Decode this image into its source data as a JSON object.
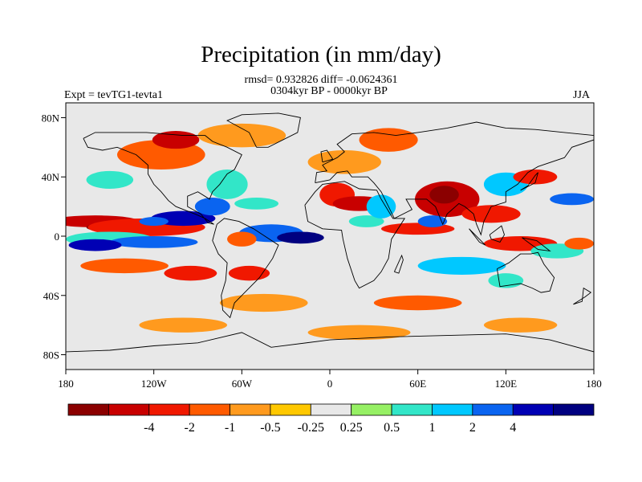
{
  "title": "Precipitation (in mm/day)",
  "stats": "rmsd= 0.932826 diff= -0.0624361",
  "period": "0304kyr BP - 0000kyr BP",
  "experiment": "Expt = tevTG1-tevta1",
  "season": "JJA",
  "axes": {
    "lat_labels": [
      "80N",
      "40N",
      "0",
      "40S",
      "80S"
    ],
    "lat_values": [
      80,
      40,
      0,
      -40,
      -80
    ],
    "lon_labels": [
      "180",
      "120W",
      "60W",
      "0",
      "60E",
      "120E",
      "180"
    ],
    "lon_values": [
      -180,
      -120,
      -60,
      0,
      60,
      120,
      180
    ],
    "lat_range": [
      -90,
      90
    ],
    "lon_range": [
      -180,
      180
    ]
  },
  "colorbar": {
    "colors": [
      "#8b0000",
      "#c80000",
      "#f01800",
      "#ff5a00",
      "#ff9a1e",
      "#ffc800",
      "#e8e8e8",
      "#96f064",
      "#32e6c8",
      "#00c8ff",
      "#0a64f0",
      "#0000b4",
      "#000080"
    ],
    "labels": [
      "-4",
      "-2",
      "-1",
      "-0.5",
      "-0.25",
      "0.25",
      "0.5",
      "1",
      "2",
      "4"
    ]
  },
  "field_blobs": [
    {
      "lon": -160,
      "lat": 10,
      "rx": 30,
      "ry": 4,
      "c": 1
    },
    {
      "lon": -150,
      "lat": 6,
      "rx": 16,
      "ry": 3,
      "c": 0
    },
    {
      "lon": -125,
      "lat": 6,
      "rx": 40,
      "ry": 6,
      "c": 2
    },
    {
      "lon": -100,
      "lat": 12,
      "rx": 22,
      "ry": 5,
      "c": 11
    },
    {
      "lon": -120,
      "lat": 10,
      "rx": 10,
      "ry": 3,
      "c": 10
    },
    {
      "lon": -150,
      "lat": -2,
      "rx": 30,
      "ry": 5,
      "c": 8
    },
    {
      "lon": -120,
      "lat": -4,
      "rx": 30,
      "ry": 4,
      "c": 10
    },
    {
      "lon": -160,
      "lat": -6,
      "rx": 18,
      "ry": 4,
      "c": 11
    },
    {
      "lon": -140,
      "lat": -20,
      "rx": 30,
      "ry": 5,
      "c": 3
    },
    {
      "lon": -95,
      "lat": -25,
      "rx": 18,
      "ry": 5,
      "c": 2
    },
    {
      "lon": -150,
      "lat": 38,
      "rx": 16,
      "ry": 6,
      "c": 8
    },
    {
      "lon": -115,
      "lat": 55,
      "rx": 30,
      "ry": 10,
      "c": 3
    },
    {
      "lon": -105,
      "lat": 65,
      "rx": 16,
      "ry": 6,
      "c": 1
    },
    {
      "lon": -60,
      "lat": 68,
      "rx": 30,
      "ry": 8,
      "c": 4
    },
    {
      "lon": -70,
      "lat": 35,
      "rx": 14,
      "ry": 10,
      "c": 8
    },
    {
      "lon": -80,
      "lat": 20,
      "rx": 12,
      "ry": 6,
      "c": 10
    },
    {
      "lon": -50,
      "lat": 22,
      "rx": 15,
      "ry": 4,
      "c": 8
    },
    {
      "lon": -40,
      "lat": 2,
      "rx": 22,
      "ry": 6,
      "c": 10
    },
    {
      "lon": -20,
      "lat": -1,
      "rx": 16,
      "ry": 4,
      "c": 12
    },
    {
      "lon": -60,
      "lat": -2,
      "rx": 10,
      "ry": 5,
      "c": 3
    },
    {
      "lon": -55,
      "lat": -25,
      "rx": 14,
      "ry": 5,
      "c": 2
    },
    {
      "lon": -45,
      "lat": -45,
      "rx": 30,
      "ry": 6,
      "c": 4
    },
    {
      "lon": 5,
      "lat": 28,
      "rx": 12,
      "ry": 8,
      "c": 2
    },
    {
      "lon": 20,
      "lat": 22,
      "rx": 18,
      "ry": 5,
      "c": 1
    },
    {
      "lon": 25,
      "lat": 10,
      "rx": 12,
      "ry": 4,
      "c": 8
    },
    {
      "lon": 35,
      "lat": 20,
      "rx": 10,
      "ry": 8,
      "c": 9
    },
    {
      "lon": 10,
      "lat": 50,
      "rx": 25,
      "ry": 8,
      "c": 4
    },
    {
      "lon": 40,
      "lat": 65,
      "rx": 20,
      "ry": 8,
      "c": 3
    },
    {
      "lon": 80,
      "lat": 25,
      "rx": 22,
      "ry": 12,
      "c": 1
    },
    {
      "lon": 78,
      "lat": 28,
      "rx": 10,
      "ry": 6,
      "c": 0
    },
    {
      "lon": 60,
      "lat": 5,
      "rx": 25,
      "ry": 4,
      "c": 2
    },
    {
      "lon": 70,
      "lat": 10,
      "rx": 10,
      "ry": 4,
      "c": 10
    },
    {
      "lon": 110,
      "lat": 15,
      "rx": 20,
      "ry": 6,
      "c": 2
    },
    {
      "lon": 120,
      "lat": 35,
      "rx": 15,
      "ry": 8,
      "c": 9
    },
    {
      "lon": 140,
      "lat": 40,
      "rx": 15,
      "ry": 5,
      "c": 2
    },
    {
      "lon": 165,
      "lat": 25,
      "rx": 15,
      "ry": 4,
      "c": 10
    },
    {
      "lon": 130,
      "lat": -5,
      "rx": 25,
      "ry": 5,
      "c": 2
    },
    {
      "lon": 155,
      "lat": -10,
      "rx": 18,
      "ry": 5,
      "c": 8
    },
    {
      "lon": 120,
      "lat": -30,
      "rx": 12,
      "ry": 5,
      "c": 8
    },
    {
      "lon": 90,
      "lat": -20,
      "rx": 30,
      "ry": 6,
      "c": 9
    },
    {
      "lon": 60,
      "lat": -45,
      "rx": 30,
      "ry": 5,
      "c": 3
    },
    {
      "lon": 20,
      "lat": -65,
      "rx": 35,
      "ry": 5,
      "c": 4
    },
    {
      "lon": -100,
      "lat": -60,
      "rx": 30,
      "ry": 5,
      "c": 4
    },
    {
      "lon": 130,
      "lat": -60,
      "rx": 25,
      "ry": 5,
      "c": 4
    },
    {
      "lon": 170,
      "lat": -5,
      "rx": 10,
      "ry": 4,
      "c": 3
    }
  ],
  "coastlines": [
    {
      "name": "north-america",
      "pts": [
        [
          -168,
          66
        ],
        [
          -160,
          70
        ],
        [
          -140,
          70
        ],
        [
          -125,
          70
        ],
        [
          -100,
          68
        ],
        [
          -85,
          68
        ],
        [
          -80,
          64
        ],
        [
          -70,
          60
        ],
        [
          -60,
          55
        ],
        [
          -65,
          45
        ],
        [
          -70,
          42
        ],
        [
          -75,
          35
        ],
        [
          -80,
          30
        ],
        [
          -82,
          25
        ],
        [
          -90,
          30
        ],
        [
          -97,
          27
        ],
        [
          -97,
          20
        ],
        [
          -88,
          15
        ],
        [
          -83,
          9
        ],
        [
          -79,
          8
        ],
        [
          -85,
          12
        ],
        [
          -92,
          15
        ],
        [
          -105,
          20
        ],
        [
          -110,
          24
        ],
        [
          -115,
          30
        ],
        [
          -120,
          35
        ],
        [
          -124,
          42
        ],
        [
          -124,
          48
        ],
        [
          -132,
          55
        ],
        [
          -145,
          60
        ],
        [
          -155,
          58
        ],
        [
          -165,
          60
        ],
        [
          -168,
          66
        ]
      ]
    },
    {
      "name": "south-america",
      "pts": [
        [
          -77,
          8
        ],
        [
          -72,
          12
        ],
        [
          -62,
          10
        ],
        [
          -52,
          5
        ],
        [
          -35,
          -6
        ],
        [
          -39,
          -15
        ],
        [
          -48,
          -28
        ],
        [
          -58,
          -38
        ],
        [
          -65,
          -45
        ],
        [
          -68,
          -55
        ],
        [
          -73,
          -50
        ],
        [
          -74,
          -40
        ],
        [
          -71,
          -30
        ],
        [
          -70,
          -18
        ],
        [
          -76,
          -12
        ],
        [
          -80,
          -3
        ],
        [
          -77,
          8
        ]
      ]
    },
    {
      "name": "africa",
      "pts": [
        [
          -17,
          21
        ],
        [
          -10,
          30
        ],
        [
          -5,
          35
        ],
        [
          10,
          37
        ],
        [
          20,
          32
        ],
        [
          32,
          31
        ],
        [
          35,
          25
        ],
        [
          43,
          12
        ],
        [
          51,
          12
        ],
        [
          42,
          -2
        ],
        [
          40,
          -15
        ],
        [
          35,
          -24
        ],
        [
          30,
          -30
        ],
        [
          20,
          -35
        ],
        [
          17,
          -30
        ],
        [
          12,
          -15
        ],
        [
          9,
          -2
        ],
        [
          8,
          4
        ],
        [
          -5,
          5
        ],
        [
          -15,
          10
        ],
        [
          -17,
          21
        ]
      ]
    },
    {
      "name": "eurasia",
      "pts": [
        [
          -10,
          36
        ],
        [
          -9,
          43
        ],
        [
          -2,
          44
        ],
        [
          -5,
          48
        ],
        [
          5,
          53
        ],
        [
          10,
          57
        ],
        [
          5,
          62
        ],
        [
          15,
          69
        ],
        [
          30,
          70
        ],
        [
          45,
          68
        ],
        [
          60,
          70
        ],
        [
          80,
          73
        ],
        [
          100,
          77
        ],
        [
          120,
          73
        ],
        [
          140,
          72
        ],
        [
          160,
          70
        ],
        [
          180,
          68
        ],
        [
          180,
          65
        ],
        [
          165,
          60
        ],
        [
          160,
          53
        ],
        [
          142,
          47
        ],
        [
          135,
          43
        ],
        [
          128,
          35
        ],
        [
          120,
          30
        ],
        [
          120,
          23
        ],
        [
          110,
          20
        ],
        [
          105,
          10
        ],
        [
          103,
          1
        ],
        [
          100,
          8
        ],
        [
          98,
          15
        ],
        [
          92,
          20
        ],
        [
          88,
          22
        ],
        [
          80,
          15
        ],
        [
          77,
          8
        ],
        [
          72,
          20
        ],
        [
          66,
          25
        ],
        [
          57,
          25
        ],
        [
          52,
          25
        ],
        [
          56,
          18
        ],
        [
          44,
          12
        ],
        [
          35,
          30
        ],
        [
          30,
          36
        ],
        [
          26,
          40
        ],
        [
          20,
          40
        ],
        [
          15,
          40
        ],
        [
          12,
          44
        ],
        [
          5,
          43
        ],
        [
          0,
          38
        ],
        [
          -10,
          36
        ]
      ]
    },
    {
      "name": "australia",
      "pts": [
        [
          114,
          -22
        ],
        [
          122,
          -18
        ],
        [
          130,
          -12
        ],
        [
          137,
          -12
        ],
        [
          142,
          -11
        ],
        [
          146,
          -19
        ],
        [
          153,
          -28
        ],
        [
          150,
          -37
        ],
        [
          144,
          -38
        ],
        [
          138,
          -35
        ],
        [
          130,
          -32
        ],
        [
          116,
          -34
        ],
        [
          114,
          -22
        ]
      ]
    },
    {
      "name": "greenland",
      "pts": [
        [
          -50,
          60
        ],
        [
          -42,
          60
        ],
        [
          -22,
          70
        ],
        [
          -20,
          80
        ],
        [
          -35,
          83
        ],
        [
          -60,
          82
        ],
        [
          -70,
          78
        ],
        [
          -55,
          70
        ],
        [
          -50,
          60
        ]
      ]
    },
    {
      "name": "antarctica",
      "pts": [
        [
          -180,
          -78
        ],
        [
          -150,
          -77
        ],
        [
          -120,
          -74
        ],
        [
          -90,
          -72
        ],
        [
          -60,
          -65
        ],
        [
          -40,
          -75
        ],
        [
          0,
          -70
        ],
        [
          40,
          -68
        ],
        [
          80,
          -67
        ],
        [
          120,
          -66
        ],
        [
          150,
          -70
        ],
        [
          180,
          -78
        ]
      ]
    },
    {
      "name": "greatbritain",
      "pts": [
        [
          -5,
          50
        ],
        [
          2,
          52
        ],
        [
          -2,
          58
        ],
        [
          -6,
          57
        ],
        [
          -5,
          50
        ]
      ]
    },
    {
      "name": "madagascar",
      "pts": [
        [
          44,
          -24
        ],
        [
          49,
          -13
        ],
        [
          50,
          -16
        ],
        [
          47,
          -25
        ],
        [
          44,
          -24
        ]
      ]
    },
    {
      "name": "japan",
      "pts": [
        [
          130,
          31
        ],
        [
          140,
          36
        ],
        [
          142,
          43
        ],
        [
          140,
          41
        ],
        [
          135,
          34
        ],
        [
          130,
          31
        ]
      ]
    },
    {
      "name": "indonesia-1",
      "pts": [
        [
          95,
          5
        ],
        [
          106,
          -6
        ],
        [
          102,
          -4
        ],
        [
          95,
          5
        ]
      ]
    },
    {
      "name": "borneo",
      "pts": [
        [
          109,
          1
        ],
        [
          117,
          7
        ],
        [
          119,
          1
        ],
        [
          116,
          -4
        ],
        [
          110,
          -2
        ],
        [
          109,
          1
        ]
      ]
    },
    {
      "name": "new-guinea",
      "pts": [
        [
          131,
          -1
        ],
        [
          141,
          -3
        ],
        [
          150,
          -10
        ],
        [
          142,
          -9
        ],
        [
          135,
          -4
        ],
        [
          131,
          -1
        ]
      ]
    },
    {
      "name": "new-zealand",
      "pts": [
        [
          166,
          -46
        ],
        [
          174,
          -41
        ],
        [
          178,
          -38
        ],
        [
          173,
          -35
        ],
        [
          172,
          -44
        ],
        [
          166,
          -46
        ]
      ]
    }
  ]
}
